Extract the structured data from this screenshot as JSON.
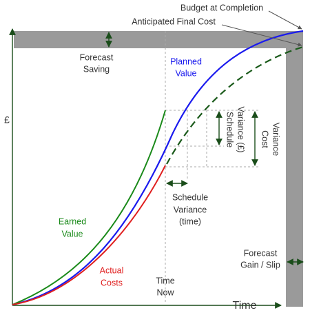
{
  "axes": {
    "y_label": "£",
    "x_label": "Time"
  },
  "labels": {
    "budget_at_completion": "Budget at Completion",
    "anticipated_final_cost": "Anticipated Final Cost",
    "forecast_saving": [
      "Forecast",
      "Saving"
    ],
    "planned_value": [
      "Planned",
      "Value"
    ],
    "earned_value": [
      "Earned",
      "Value"
    ],
    "actual_costs": [
      "Actual",
      "Costs"
    ],
    "time_now": [
      "Time",
      "Now"
    ],
    "schedule_variance_time": [
      "Schedule",
      "Variance",
      "(time)"
    ],
    "schedule_variance_money": [
      "Schedule",
      "Variance (£)"
    ],
    "cost_variance": [
      "Cost",
      "Variance"
    ],
    "forecast_gain_slip": [
      "Forecast",
      "Gain / Slip"
    ]
  }
}
